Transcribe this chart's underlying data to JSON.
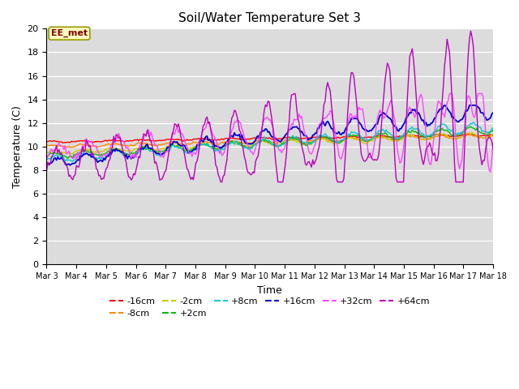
{
  "title": "Soil/Water Temperature Set 3",
  "xlabel": "Time",
  "ylabel": "Temperature (C)",
  "ylim": [
    0,
    20
  ],
  "yticks": [
    0,
    2,
    4,
    6,
    8,
    10,
    12,
    14,
    16,
    18,
    20
  ],
  "bg_color": "#dcdcdc",
  "fig_color": "#ffffff",
  "annotation_text": "EE_met",
  "annotation_bg": "#ffffc0",
  "annotation_border": "#999900",
  "series_order": [
    "-16cm",
    "-8cm",
    "-2cm",
    "+2cm",
    "+8cm",
    "+16cm",
    "+32cm",
    "+64cm"
  ],
  "series": {
    "-16cm": {
      "color": "#ff0000",
      "lw": 1.0
    },
    "-8cm": {
      "color": "#ff8800",
      "lw": 1.0
    },
    "-2cm": {
      "color": "#cccc00",
      "lw": 1.0
    },
    "+2cm": {
      "color": "#00bb00",
      "lw": 1.0
    },
    "+8cm": {
      "color": "#00cccc",
      "lw": 1.0
    },
    "+16cm": {
      "color": "#0000cc",
      "lw": 1.3
    },
    "+32cm": {
      "color": "#ff44ff",
      "lw": 1.0
    },
    "+64cm": {
      "color": "#bb00bb",
      "lw": 1.0
    }
  },
  "legend_ncol_row1": 6,
  "legend_ncol_row2": 2
}
